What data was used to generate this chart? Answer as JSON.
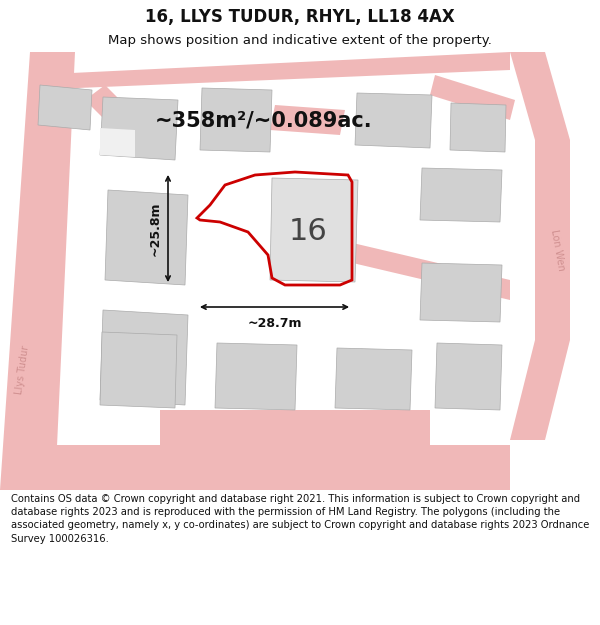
{
  "title": "16, LLYS TUDUR, RHYL, LL18 4AX",
  "subtitle": "Map shows position and indicative extent of the property.",
  "footer": "Contains OS data © Crown copyright and database right 2021. This information is subject to Crown copyright and database rights 2023 and is reproduced with the permission of HM Land Registry. The polygons (including the associated geometry, namely x, y co-ordinates) are subject to Crown copyright and database rights 2023 Ordnance Survey 100026316.",
  "area_label": "~358m²/~0.089ac.",
  "width_label": "~28.7m",
  "height_label": "~25.8m",
  "number_label": "16",
  "map_bg": "#f0f0f0",
  "road_color": "#f0b8b8",
  "road_edge": "none",
  "building_color": "#d0d0d0",
  "building_edge": "#aaaaaa",
  "red_plot_color": "#cc0000",
  "dim_line_color": "#111111",
  "street_label_color": "#d09090",
  "title_fontsize": 12,
  "subtitle_fontsize": 9.5,
  "footer_fontsize": 7.2,
  "area_fontsize": 15,
  "number_fontsize": 22,
  "dim_fontsize": 9
}
